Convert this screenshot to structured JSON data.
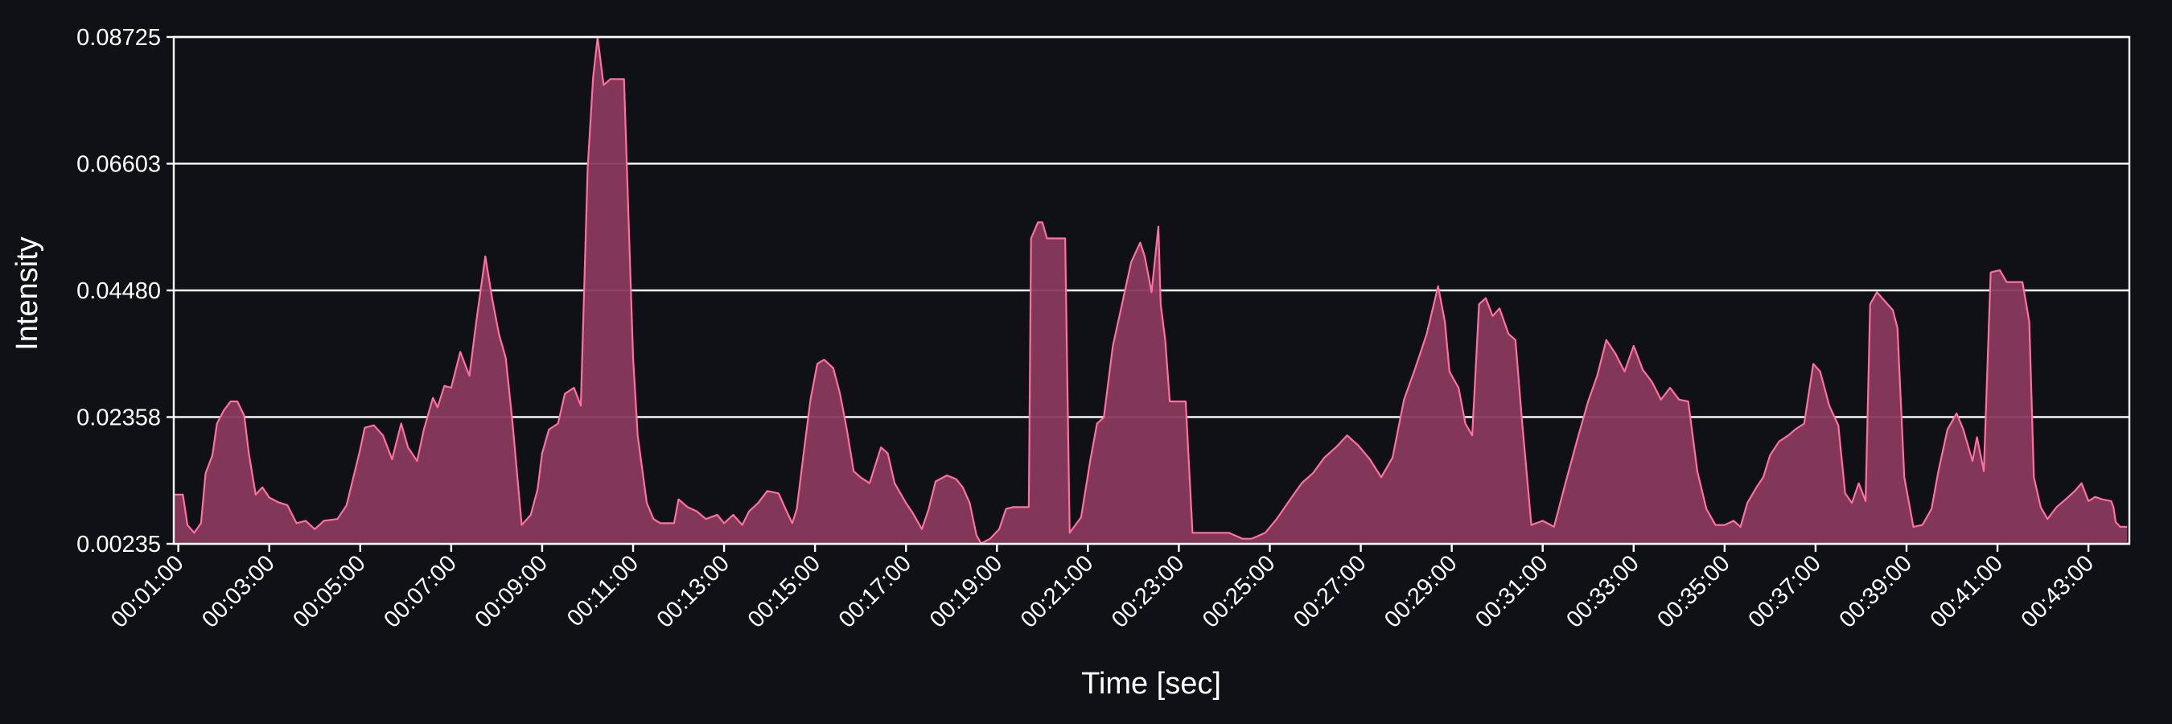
{
  "chart_data": {
    "type": "area",
    "title": "",
    "xlabel": "Time [sec]",
    "ylabel": "Intensity",
    "ylim": [
      0.00235,
      0.08725
    ],
    "xlim_minutes": [
      0.9,
      43.9
    ],
    "grid": "horizontal",
    "colors": {
      "background": "#0f1117",
      "line": "#ff6fa0",
      "fill": "#8a3a5c",
      "grid": "#ffffff",
      "text": "#ffffff"
    },
    "y_ticks": [
      "0.00235",
      "0.02358",
      "0.04480",
      "0.06603",
      "0.08725"
    ],
    "y_tick_values": [
      0.00235,
      0.02358,
      0.0448,
      0.06603,
      0.08725
    ],
    "x_ticks": [
      "00:01:00",
      "00:03:00",
      "00:05:00",
      "00:07:00",
      "00:09:00",
      "00:11:00",
      "00:13:00",
      "00:15:00",
      "00:17:00",
      "00:19:00",
      "00:21:00",
      "00:23:00",
      "00:25:00",
      "00:27:00",
      "00:29:00",
      "00:31:00",
      "00:33:00",
      "00:35:00",
      "00:37:00",
      "00:39:00",
      "00:41:00",
      "00:43:00"
    ],
    "x_tick_minutes": [
      1,
      3,
      5,
      7,
      9,
      11,
      13,
      15,
      17,
      19,
      21,
      23,
      25,
      27,
      29,
      31,
      33,
      35,
      37,
      39,
      41,
      43
    ],
    "series": [
      {
        "name": "Intensity",
        "points": [
          [
            0.9,
            0.0106
          ],
          [
            1.1,
            0.0106
          ],
          [
            1.2,
            0.0055
          ],
          [
            1.35,
            0.0042
          ],
          [
            1.5,
            0.0058
          ],
          [
            1.6,
            0.0142
          ],
          [
            1.75,
            0.0172
          ],
          [
            1.85,
            0.0225
          ],
          [
            2.0,
            0.0247
          ],
          [
            2.15,
            0.0262
          ],
          [
            2.3,
            0.0262
          ],
          [
            2.45,
            0.0238
          ],
          [
            2.55,
            0.0175
          ],
          [
            2.7,
            0.0106
          ],
          [
            2.85,
            0.0118
          ],
          [
            3.0,
            0.0101
          ],
          [
            3.2,
            0.0093
          ],
          [
            3.4,
            0.0088
          ],
          [
            3.6,
            0.0058
          ],
          [
            3.8,
            0.0062
          ],
          [
            4.0,
            0.0048
          ],
          [
            4.2,
            0.0062
          ],
          [
            4.5,
            0.0065
          ],
          [
            4.7,
            0.0088
          ],
          [
            4.85,
            0.0135
          ],
          [
            5.0,
            0.0182
          ],
          [
            5.1,
            0.0218
          ],
          [
            5.3,
            0.0222
          ],
          [
            5.5,
            0.0205
          ],
          [
            5.7,
            0.0165
          ],
          [
            5.9,
            0.0225
          ],
          [
            6.05,
            0.0185
          ],
          [
            6.25,
            0.0162
          ],
          [
            6.4,
            0.0215
          ],
          [
            6.6,
            0.0268
          ],
          [
            6.7,
            0.0252
          ],
          [
            6.85,
            0.0288
          ],
          [
            7.0,
            0.0285
          ],
          [
            7.2,
            0.0345
          ],
          [
            7.4,
            0.0305
          ],
          [
            7.55,
            0.0395
          ],
          [
            7.75,
            0.0505
          ],
          [
            7.9,
            0.0435
          ],
          [
            8.05,
            0.0375
          ],
          [
            8.2,
            0.0335
          ],
          [
            8.35,
            0.0225
          ],
          [
            8.55,
            0.0055
          ],
          [
            8.75,
            0.0072
          ],
          [
            8.9,
            0.0115
          ],
          [
            9.0,
            0.0175
          ],
          [
            9.15,
            0.0215
          ],
          [
            9.35,
            0.0225
          ],
          [
            9.5,
            0.0275
          ],
          [
            9.7,
            0.0285
          ],
          [
            9.85,
            0.0255
          ],
          [
            10.0,
            0.0652
          ],
          [
            10.12,
            0.0805
          ],
          [
            10.22,
            0.0872
          ],
          [
            10.35,
            0.0792
          ],
          [
            10.5,
            0.0802
          ],
          [
            10.8,
            0.0802
          ],
          [
            11.0,
            0.0335
          ],
          [
            11.1,
            0.0205
          ],
          [
            11.3,
            0.0092
          ],
          [
            11.45,
            0.0065
          ],
          [
            11.6,
            0.0058
          ],
          [
            11.9,
            0.0058
          ],
          [
            12.0,
            0.0098
          ],
          [
            12.2,
            0.0085
          ],
          [
            12.4,
            0.0078
          ],
          [
            12.6,
            0.0065
          ],
          [
            12.85,
            0.0072
          ],
          [
            13.0,
            0.0058
          ],
          [
            13.2,
            0.0072
          ],
          [
            13.4,
            0.0055
          ],
          [
            13.55,
            0.0078
          ],
          [
            13.75,
            0.0092
          ],
          [
            13.95,
            0.0112
          ],
          [
            14.2,
            0.0108
          ],
          [
            14.35,
            0.0082
          ],
          [
            14.5,
            0.0058
          ],
          [
            14.6,
            0.0082
          ],
          [
            14.75,
            0.0175
          ],
          [
            14.9,
            0.0265
          ],
          [
            15.05,
            0.0325
          ],
          [
            15.2,
            0.0332
          ],
          [
            15.4,
            0.0318
          ],
          [
            15.55,
            0.0275
          ],
          [
            15.7,
            0.0215
          ],
          [
            15.85,
            0.0145
          ],
          [
            16.0,
            0.0135
          ],
          [
            16.2,
            0.0125
          ],
          [
            16.45,
            0.0185
          ],
          [
            16.6,
            0.0175
          ],
          [
            16.75,
            0.0125
          ],
          [
            17.0,
            0.0092
          ],
          [
            17.15,
            0.0075
          ],
          [
            17.35,
            0.0048
          ],
          [
            17.5,
            0.0082
          ],
          [
            17.65,
            0.0128
          ],
          [
            17.9,
            0.0138
          ],
          [
            18.1,
            0.0132
          ],
          [
            18.25,
            0.0118
          ],
          [
            18.4,
            0.0092
          ],
          [
            18.55,
            0.0038
          ],
          [
            18.65,
            0.0024
          ],
          [
            18.85,
            0.0032
          ],
          [
            19.05,
            0.0048
          ],
          [
            19.2,
            0.0082
          ],
          [
            19.35,
            0.0085
          ],
          [
            19.7,
            0.0085
          ],
          [
            19.75,
            0.0535
          ],
          [
            19.9,
            0.0562
          ],
          [
            20.0,
            0.0562
          ],
          [
            20.1,
            0.0535
          ],
          [
            20.35,
            0.0535
          ],
          [
            20.5,
            0.0535
          ],
          [
            20.6,
            0.0042
          ],
          [
            20.85,
            0.0068
          ],
          [
            21.05,
            0.0162
          ],
          [
            21.2,
            0.0225
          ],
          [
            21.35,
            0.0235
          ],
          [
            21.55,
            0.0355
          ],
          [
            21.75,
            0.0425
          ],
          [
            21.95,
            0.0495
          ],
          [
            22.15,
            0.0528
          ],
          [
            22.25,
            0.0505
          ],
          [
            22.4,
            0.0445
          ],
          [
            22.55,
            0.0555
          ],
          [
            22.6,
            0.0425
          ],
          [
            22.7,
            0.0365
          ],
          [
            22.8,
            0.0262
          ],
          [
            23.0,
            0.0262
          ],
          [
            23.15,
            0.0262
          ],
          [
            23.3,
            0.0042
          ],
          [
            23.6,
            0.0042
          ],
          [
            24.1,
            0.0042
          ],
          [
            24.4,
            0.0032
          ],
          [
            24.6,
            0.0032
          ],
          [
            24.9,
            0.0042
          ],
          [
            25.15,
            0.0065
          ],
          [
            25.45,
            0.0098
          ],
          [
            25.7,
            0.0125
          ],
          [
            25.95,
            0.0142
          ],
          [
            26.2,
            0.0168
          ],
          [
            26.45,
            0.0185
          ],
          [
            26.7,
            0.0205
          ],
          [
            26.95,
            0.0188
          ],
          [
            27.2,
            0.0165
          ],
          [
            27.45,
            0.0135
          ],
          [
            27.7,
            0.0168
          ],
          [
            27.95,
            0.0265
          ],
          [
            28.2,
            0.0318
          ],
          [
            28.45,
            0.0375
          ],
          [
            28.7,
            0.0455
          ],
          [
            28.85,
            0.0395
          ],
          [
            28.95,
            0.0312
          ],
          [
            29.15,
            0.0285
          ],
          [
            29.3,
            0.0225
          ],
          [
            29.45,
            0.0205
          ],
          [
            29.6,
            0.0425
          ],
          [
            29.75,
            0.0435
          ],
          [
            29.9,
            0.0405
          ],
          [
            30.05,
            0.0418
          ],
          [
            30.25,
            0.0375
          ],
          [
            30.4,
            0.0365
          ],
          [
            30.55,
            0.0225
          ],
          [
            30.75,
            0.0055
          ],
          [
            31.0,
            0.0062
          ],
          [
            31.25,
            0.0052
          ],
          [
            31.5,
            0.0125
          ],
          [
            31.75,
            0.0195
          ],
          [
            32.0,
            0.0262
          ],
          [
            32.2,
            0.0305
          ],
          [
            32.4,
            0.0365
          ],
          [
            32.6,
            0.0342
          ],
          [
            32.8,
            0.0312
          ],
          [
            33.0,
            0.0355
          ],
          [
            33.2,
            0.0315
          ],
          [
            33.4,
            0.0295
          ],
          [
            33.6,
            0.0265
          ],
          [
            33.8,
            0.0285
          ],
          [
            34.0,
            0.0265
          ],
          [
            34.2,
            0.0262
          ],
          [
            34.4,
            0.0145
          ],
          [
            34.6,
            0.0082
          ],
          [
            34.8,
            0.0055
          ],
          [
            35.0,
            0.0055
          ],
          [
            35.2,
            0.0062
          ],
          [
            35.35,
            0.0052
          ],
          [
            35.5,
            0.0092
          ],
          [
            35.7,
            0.0118
          ],
          [
            35.85,
            0.0135
          ],
          [
            36.0,
            0.0172
          ],
          [
            36.2,
            0.0195
          ],
          [
            36.4,
            0.0205
          ],
          [
            36.55,
            0.0215
          ],
          [
            36.75,
            0.0225
          ],
          [
            36.95,
            0.0325
          ],
          [
            37.1,
            0.0312
          ],
          [
            37.3,
            0.0255
          ],
          [
            37.5,
            0.0222
          ],
          [
            37.65,
            0.0108
          ],
          [
            37.8,
            0.0092
          ],
          [
            37.95,
            0.0125
          ],
          [
            38.1,
            0.0095
          ],
          [
            38.2,
            0.0425
          ],
          [
            38.35,
            0.0445
          ],
          [
            38.5,
            0.0432
          ],
          [
            38.7,
            0.0415
          ],
          [
            38.8,
            0.0385
          ],
          [
            38.95,
            0.0135
          ],
          [
            39.15,
            0.0052
          ],
          [
            39.35,
            0.0055
          ],
          [
            39.55,
            0.0082
          ],
          [
            39.7,
            0.0145
          ],
          [
            39.9,
            0.0215
          ],
          [
            40.1,
            0.0242
          ],
          [
            40.25,
            0.0215
          ],
          [
            40.45,
            0.0162
          ],
          [
            40.55,
            0.0202
          ],
          [
            40.7,
            0.0145
          ],
          [
            40.85,
            0.0478
          ],
          [
            41.05,
            0.0482
          ],
          [
            41.2,
            0.0462
          ],
          [
            41.55,
            0.0462
          ],
          [
            41.7,
            0.0395
          ],
          [
            41.8,
            0.0135
          ],
          [
            41.95,
            0.0085
          ],
          [
            42.1,
            0.0065
          ],
          [
            42.3,
            0.0085
          ],
          [
            42.5,
            0.0098
          ],
          [
            42.7,
            0.0112
          ],
          [
            42.85,
            0.0125
          ],
          [
            43.0,
            0.0095
          ],
          [
            43.15,
            0.0102
          ],
          [
            43.3,
            0.0098
          ],
          [
            43.5,
            0.0095
          ],
          [
            43.55,
            0.0085
          ],
          [
            43.6,
            0.006
          ],
          [
            43.7,
            0.0052
          ],
          [
            43.85,
            0.0052
          ]
        ]
      }
    ]
  }
}
